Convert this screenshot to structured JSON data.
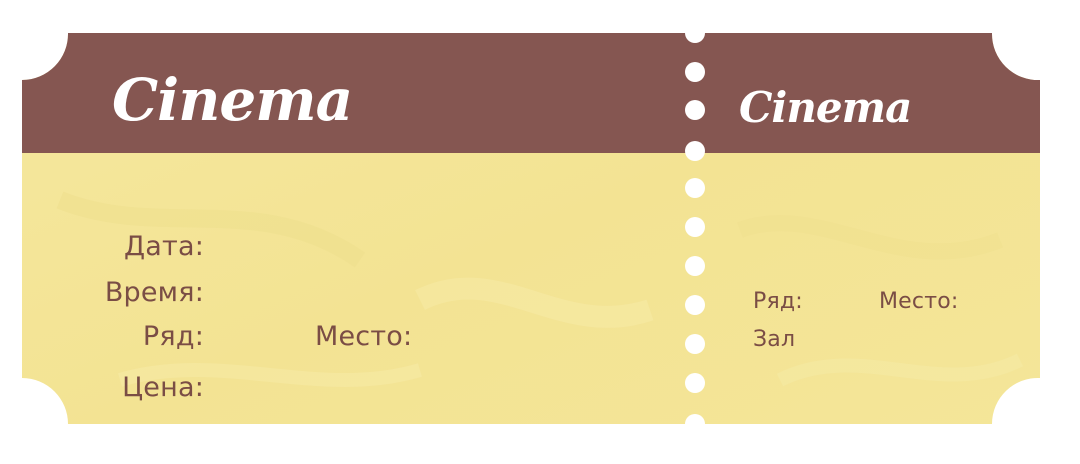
{
  "ticket": {
    "main": {
      "logo": "Cinema",
      "date_label": "Дата:",
      "time_label": "Время:",
      "row_label": "Ряд:",
      "seat_label": "Место:",
      "price_label": "Цена:"
    },
    "stub": {
      "logo": "Cinema",
      "row_label": "Ряд:",
      "seat_label": "Место:",
      "hall_label": "Зал"
    }
  },
  "colors": {
    "header": "#855651",
    "body": "#f4e699",
    "text": "#7a4d45",
    "logo": "#ffffff",
    "perforation": "#ffffff"
  }
}
